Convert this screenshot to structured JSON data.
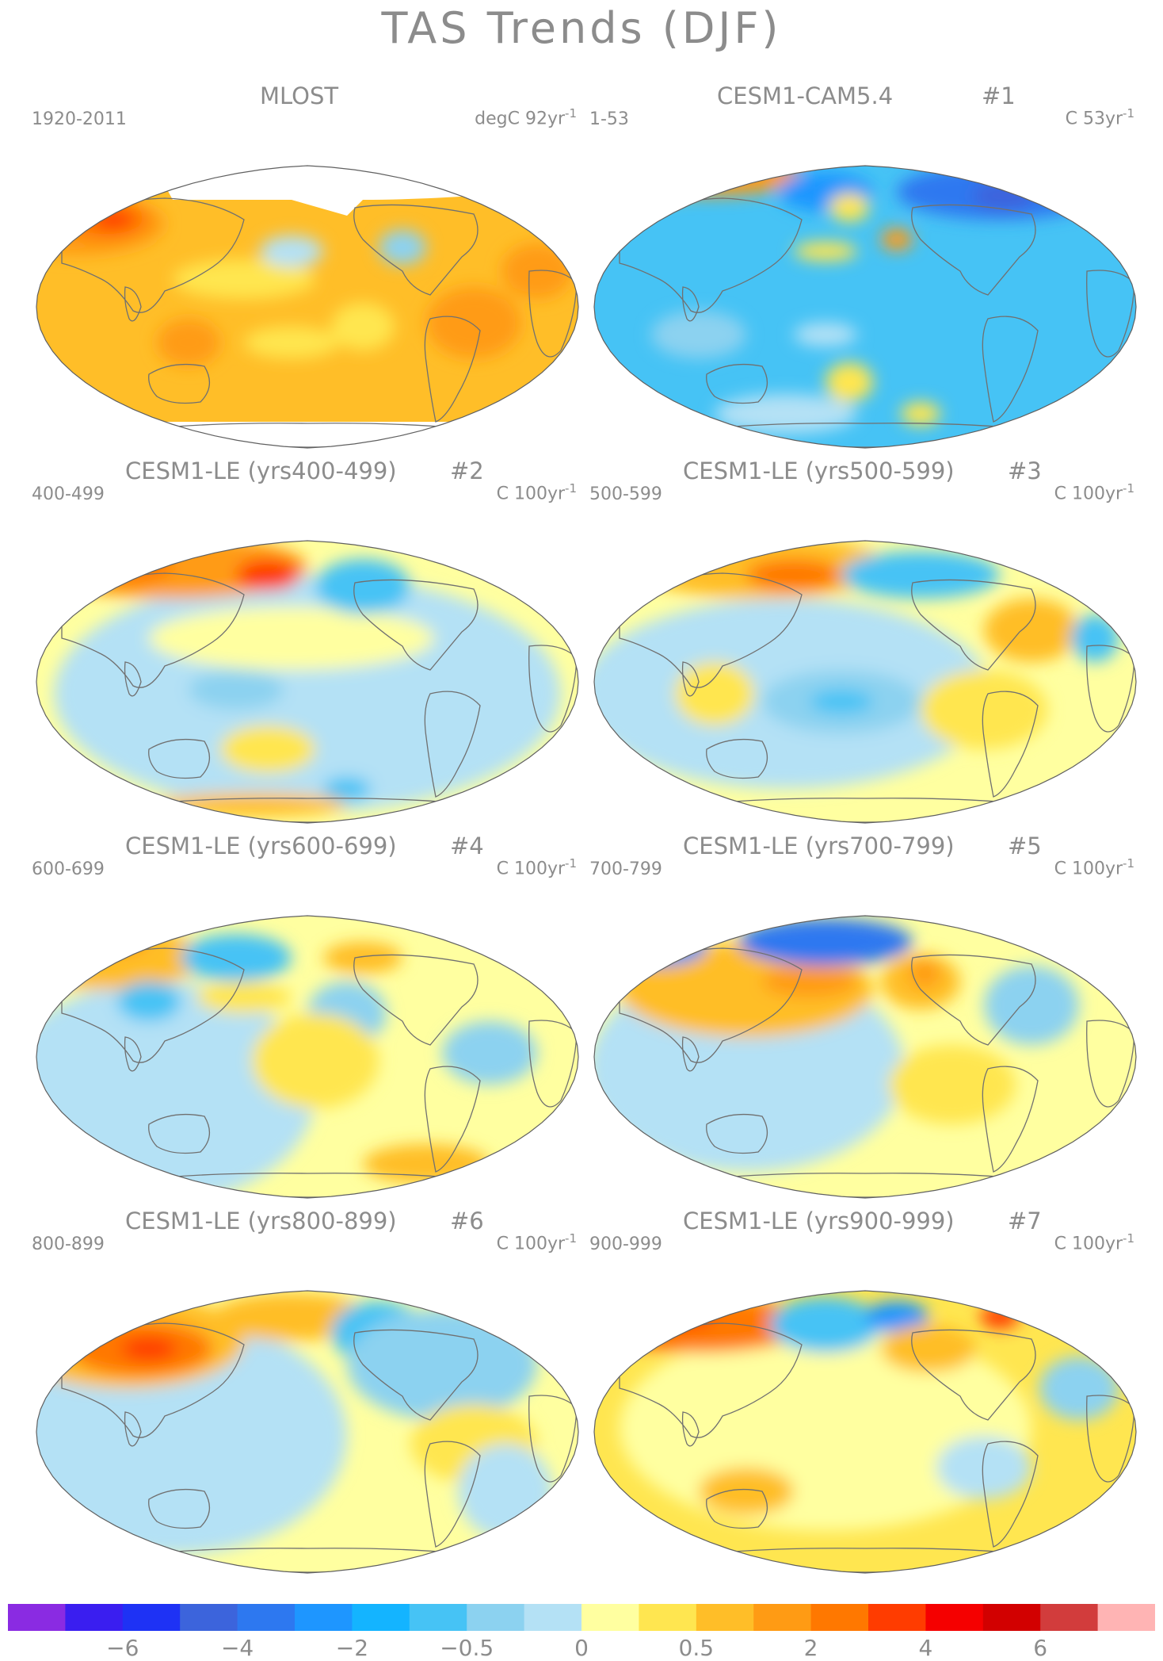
{
  "title": "TAS Trends (DJF)",
  "panels": [
    {
      "name": "MLOST",
      "number": "",
      "period": "1920-2011",
      "units": "degC 92yr",
      "units_exp": "-1",
      "style": "obs"
    },
    {
      "name": "CESM1-CAM5.4",
      "number": "#1",
      "period": "1-53",
      "units": "C 53yr",
      "units_exp": "-1",
      "style": "cool"
    },
    {
      "name": "CESM1-LE (yrs400-499)",
      "number": "#2",
      "period": "400-499",
      "units": "C 100yr",
      "units_exp": "-1",
      "style": "mixed-warm-nh"
    },
    {
      "name": "CESM1-LE (yrs500-599)",
      "number": "#3",
      "period": "500-599",
      "units": "C 100yr",
      "units_exp": "-1",
      "style": "mixed-warm-pacific"
    },
    {
      "name": "CESM1-LE (yrs600-699)",
      "number": "#4",
      "period": "600-699",
      "units": "C 100yr",
      "units_exp": "-1",
      "style": "mixed-warm-asia"
    },
    {
      "name": "CESM1-LE (yrs700-799)",
      "number": "#5",
      "period": "700-799",
      "units": "C 100yr",
      "units_exp": "-1",
      "style": "mixed-warm-na"
    },
    {
      "name": "CESM1-LE (yrs800-899)",
      "number": "#6",
      "period": "800-899",
      "units": "C 100yr",
      "units_exp": "-1",
      "style": "mixed-warm-eurasia"
    },
    {
      "name": "CESM1-LE (yrs900-999)",
      "number": "#7",
      "period": "900-999",
      "units": "C 100yr",
      "units_exp": "-1",
      "style": "mixed-warm-broad"
    }
  ],
  "colorbar": {
    "colors": [
      "#8a2be2",
      "#3a1ef0",
      "#1e32f5",
      "#3c64dc",
      "#2d78f0",
      "#1e96ff",
      "#14b4ff",
      "#46c3f5",
      "#8cd2f0",
      "#b4e1f5",
      "#ffffa0",
      "#ffe650",
      "#ffbe28",
      "#ff9b14",
      "#ff7800",
      "#ff3c00",
      "#f50000",
      "#d20000",
      "#d23c3c",
      "#ffb4b4"
    ],
    "labels": [
      {
        "text": "−6",
        "index": 2
      },
      {
        "text": "−4",
        "index": 4
      },
      {
        "text": "−2",
        "index": 6
      },
      {
        "text": "−0.5",
        "index": 8
      },
      {
        "text": "0",
        "index": 10
      },
      {
        "text": "0.5",
        "index": 12
      },
      {
        "text": "2",
        "index": 14
      },
      {
        "text": "4",
        "index": 16
      },
      {
        "text": "6",
        "index": 18
      }
    ]
  }
}
